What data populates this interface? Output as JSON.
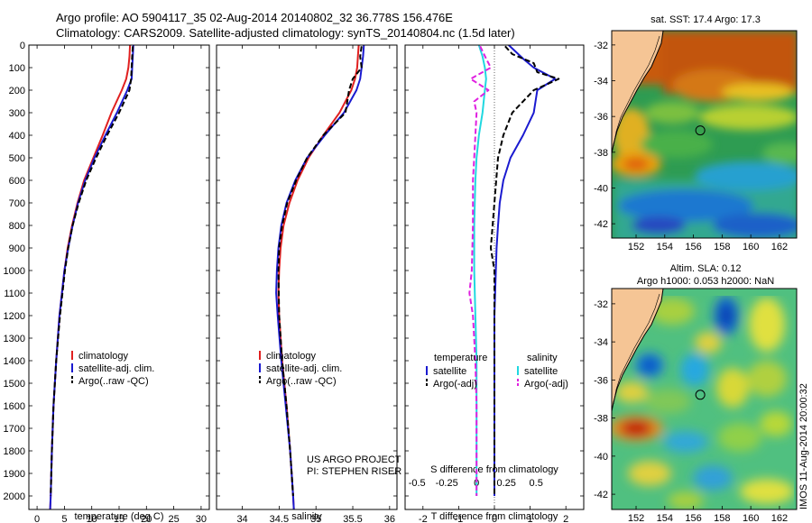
{
  "title_line1": "Argo profile: AO 5904117_35 02-Aug-2014 20140802_32 36.778S 156.476E",
  "title_line2": "Climatology: CARS2009. Satellite-adjusted climatology: synTS_20140804.nc (1.5d later)",
  "stamp": "IMOS 11-Aug-2014 20:00:32",
  "chart_data": [
    {
      "type": "line",
      "id": "temperature",
      "xlabel": "temperature (deg C)",
      "ylabel": "",
      "xlim": [
        -1.5,
        31.5
      ],
      "ylim": [
        2060,
        0
      ],
      "xticks": [
        0,
        5,
        10,
        15,
        20,
        25,
        30
      ],
      "yticks": [
        0,
        100,
        200,
        300,
        400,
        500,
        600,
        700,
        800,
        900,
        1000,
        1100,
        1200,
        1300,
        1400,
        1500,
        1600,
        1700,
        1800,
        1900,
        2000
      ],
      "legend": [
        "climatology",
        "satellite-adj. clim.",
        "Argo(..raw -QC)"
      ],
      "legend_position": "lower-middle",
      "series": [
        {
          "name": "climatology",
          "color": "#e02020",
          "dash": "none",
          "depth": [
            0,
            50,
            100,
            150,
            200,
            300,
            400,
            500,
            600,
            700,
            800,
            900,
            1000,
            1200,
            1400,
            1600,
            1800,
            2000,
            2060
          ],
          "values": [
            17.0,
            16.9,
            16.7,
            16.3,
            15.5,
            13.6,
            12.0,
            10.3,
            8.6,
            7.4,
            6.4,
            5.6,
            5.0,
            4.1,
            3.5,
            3.0,
            2.7,
            2.5,
            2.4
          ]
        },
        {
          "name": "satellite-adj. clim.",
          "color": "#1a1ad0",
          "dash": "none",
          "depth": [
            0,
            50,
            100,
            150,
            200,
            300,
            400,
            500,
            600,
            700,
            800,
            900,
            1000,
            1200,
            1400,
            1600,
            1800,
            2000,
            2060
          ],
          "values": [
            17.6,
            17.5,
            17.4,
            17.3,
            16.5,
            14.6,
            12.5,
            10.5,
            8.8,
            7.5,
            6.5,
            5.7,
            5.0,
            4.1,
            3.5,
            3.0,
            2.7,
            2.5,
            2.4
          ]
        },
        {
          "name": "Argo(..raw -QC)",
          "color": "#000000",
          "dash": "6,3",
          "depth": [
            5,
            50,
            100,
            150,
            200,
            300,
            400,
            500,
            600,
            700,
            800,
            900,
            1000,
            1200,
            1400,
            1600,
            1800,
            2000
          ],
          "values": [
            17.5,
            17.4,
            17.3,
            17.2,
            16.9,
            15.0,
            12.8,
            10.8,
            9.0,
            7.6,
            6.5,
            5.7,
            5.1,
            4.2,
            3.5,
            3.0,
            2.7,
            2.5
          ]
        }
      ]
    },
    {
      "type": "line",
      "id": "salinity",
      "xlabel": "salinity",
      "ylabel": "",
      "xlim": [
        33.65,
        36.1
      ],
      "ylim": [
        2060,
        0
      ],
      "xticks": [
        34,
        34.5,
        35,
        35.5,
        36
      ],
      "legend": [
        "climatology",
        "satellite-adj. clim.",
        "Argo(..raw -QC)"
      ],
      "legend_position": "lower-middle",
      "annotation": [
        "US ARGO PROJECT",
        "PI: STEPHEN RISER"
      ],
      "series": [
        {
          "name": "climatology",
          "color": "#e02020",
          "dash": "none",
          "depth": [
            0,
            50,
            100,
            150,
            200,
            300,
            400,
            500,
            600,
            700,
            800,
            900,
            1000,
            1100,
            1200,
            1400,
            1600,
            1800,
            2000,
            2060
          ],
          "values": [
            35.58,
            35.57,
            35.56,
            35.53,
            35.48,
            35.32,
            35.1,
            34.9,
            34.75,
            34.64,
            34.56,
            34.52,
            34.5,
            34.49,
            34.5,
            34.54,
            34.6,
            34.65,
            34.69,
            34.7
          ]
        },
        {
          "name": "satellite-adj. clim.",
          "color": "#1a1ad0",
          "dash": "none",
          "depth": [
            0,
            50,
            100,
            150,
            200,
            300,
            400,
            500,
            600,
            700,
            800,
            900,
            1000,
            1100,
            1200,
            1400,
            1600,
            1800,
            2000,
            2060
          ],
          "values": [
            35.65,
            35.64,
            35.62,
            35.6,
            35.55,
            35.38,
            35.12,
            34.88,
            34.72,
            34.6,
            34.53,
            34.49,
            34.47,
            34.46,
            34.48,
            34.53,
            34.59,
            34.65,
            34.69,
            34.7
          ]
        },
        {
          "name": "Argo(..raw -QC)",
          "color": "#000000",
          "dash": "6,3",
          "depth": [
            5,
            50,
            100,
            150,
            200,
            300,
            400,
            500,
            600,
            700,
            800,
            900,
            1000,
            1200,
            1400,
            1600,
            1800,
            2000
          ],
          "values": [
            35.62,
            35.6,
            35.62,
            35.5,
            35.45,
            35.4,
            35.1,
            34.88,
            34.73,
            34.61,
            34.54,
            34.5,
            34.49,
            34.5,
            34.54,
            34.6,
            34.65,
            34.69
          ]
        }
      ]
    },
    {
      "type": "line",
      "id": "differences",
      "xlabel": "T difference from climatology",
      "xlabel2": "S difference from climatology",
      "xlim": [
        -2.5,
        2.5
      ],
      "xlim2": [
        -0.6,
        0.9
      ],
      "ylim": [
        2060,
        0
      ],
      "xticks": [
        -2,
        -1,
        0,
        1,
        2
      ],
      "xticks2": [
        -0.5,
        -0.25,
        0,
        0.25,
        0.5
      ],
      "xticklabels2": [
        "-0.5",
        "-0.25",
        "0",
        "0.25",
        "0.5"
      ],
      "legend_headers": [
        "temperature",
        "salinity"
      ],
      "legend": [
        "satellite",
        "Argo(-adj)",
        "satellite",
        "Argo(-adj)"
      ],
      "series": [
        {
          "name": "satellite",
          "group": "temperature",
          "axis": "T",
          "color": "#1a1ad0",
          "dash": "none",
          "depth": [
            0,
            30,
            60,
            100,
            150,
            200,
            300,
            400,
            500,
            600,
            700,
            800,
            900,
            1000,
            1100,
            1200,
            1400,
            1600,
            1800,
            2000
          ],
          "values": [
            0.4,
            0.6,
            0.8,
            1.1,
            1.7,
            1.2,
            1.1,
            0.8,
            0.45,
            0.25,
            0.15,
            0.1,
            0.06,
            0.04,
            0.02,
            0.0,
            0.0,
            0.0,
            0.0,
            0.0
          ]
        },
        {
          "name": "Argo(-adj)",
          "group": "temperature",
          "axis": "T",
          "color": "#000000",
          "dash": "6,3",
          "depth": [
            5,
            40,
            80,
            120,
            150,
            200,
            300,
            400,
            500,
            600,
            700,
            800,
            900,
            1000,
            1200,
            1400,
            1600,
            1800,
            2000
          ],
          "values": [
            0.3,
            0.5,
            1.1,
            1.2,
            1.8,
            1.1,
            0.5,
            0.25,
            0.1,
            0.05,
            0.0,
            -0.05,
            -0.1,
            0.0,
            0.0,
            0.0,
            0.0,
            0.0,
            0.0
          ]
        },
        {
          "name": "satellite",
          "group": "salinity",
          "axis": "S",
          "color": "#20d8e0",
          "dash": "none",
          "depth": [
            0,
            50,
            100,
            150,
            200,
            300,
            400,
            500,
            600,
            800,
            1000,
            1200,
            1400,
            1600,
            1800,
            2000
          ],
          "values": [
            0.02,
            0.05,
            0.07,
            0.08,
            0.07,
            0.05,
            0.02,
            0.0,
            -0.01,
            -0.02,
            -0.02,
            -0.01,
            0.0,
            0.0,
            0.0,
            0.0
          ]
        },
        {
          "name": "Argo(-adj)",
          "group": "salinity",
          "axis": "S",
          "color": "#e020e0",
          "dash": "6,3",
          "depth": [
            5,
            60,
            100,
            150,
            200,
            250,
            300,
            400,
            500,
            600,
            800,
            1000,
            1100,
            1200,
            1400,
            1600,
            1800,
            2000
          ],
          "values": [
            0.03,
            0.08,
            0.12,
            -0.05,
            0.1,
            -0.02,
            0.0,
            -0.01,
            -0.02,
            -0.03,
            -0.03,
            -0.04,
            -0.06,
            -0.03,
            -0.01,
            0.0,
            0.0,
            0.0
          ]
        }
      ]
    },
    {
      "type": "heatmap",
      "id": "sst-map",
      "title": "sat. SST: 17.4 Argo: 17.3",
      "xticks": [
        152,
        154,
        156,
        158,
        160,
        162
      ],
      "yticks": [
        -32,
        -34,
        -36,
        -38,
        -40,
        -42
      ],
      "xlim": [
        150.3,
        163.2
      ],
      "ylim": [
        -42.8,
        -31.2
      ],
      "marker": {
        "lon": 156.476,
        "lat": -36.778
      }
    },
    {
      "type": "heatmap",
      "id": "sla-map",
      "title": "Altim. SLA: 0.12",
      "subtitle": "Argo h1000: 0.053 h2000: NaN",
      "xticks": [
        152,
        154,
        156,
        158,
        160,
        162
      ],
      "yticks": [
        -32,
        -34,
        -36,
        -38,
        -40,
        -42
      ],
      "xlim": [
        150.3,
        163.2
      ],
      "ylim": [
        -42.8,
        -31.2
      ],
      "marker": {
        "lon": 156.476,
        "lat": -36.778
      }
    }
  ]
}
